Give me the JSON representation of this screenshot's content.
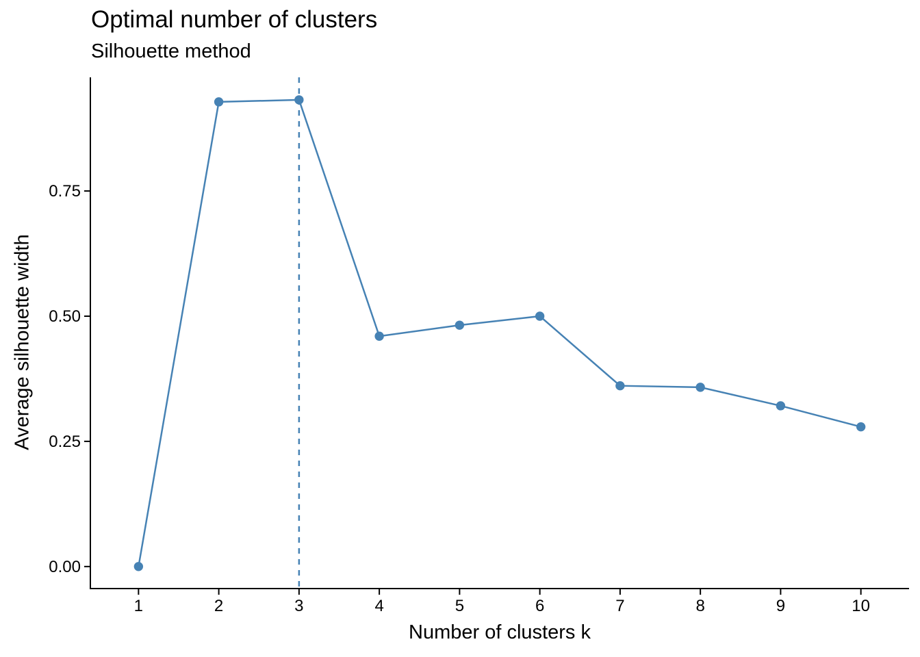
{
  "title": "Optimal number of clusters",
  "subtitle": "Silhouette method",
  "chart_data": {
    "type": "line",
    "x": [
      1,
      2,
      3,
      4,
      5,
      6,
      7,
      8,
      9,
      10
    ],
    "values": [
      0.0,
      0.928,
      0.932,
      0.46,
      0.482,
      0.5,
      0.361,
      0.358,
      0.321,
      0.279
    ],
    "x_tick_labels": [
      "1",
      "2",
      "3",
      "4",
      "5",
      "6",
      "7",
      "8",
      "9",
      "10"
    ],
    "y_ticks": [
      0.0,
      0.25,
      0.5,
      0.75
    ],
    "y_tick_labels": [
      "0.00",
      "0.25",
      "0.50",
      "0.75"
    ],
    "title": "Optimal number of clusters",
    "subtitle": "Silhouette method",
    "xlabel": "Number of clusters k",
    "ylabel": "Average silhouette width",
    "xlim": [
      0.4,
      10.6
    ],
    "ylim": [
      -0.044,
      0.977
    ],
    "vline_x": 3,
    "optimal_k": 3,
    "grid": false,
    "legend": "none",
    "line_color": "#4682B4",
    "point_color": "#4682B4",
    "vline_color": "#4682B4",
    "axis_color": "#000000",
    "text_color": "#000000",
    "background": "#FFFFFF"
  }
}
